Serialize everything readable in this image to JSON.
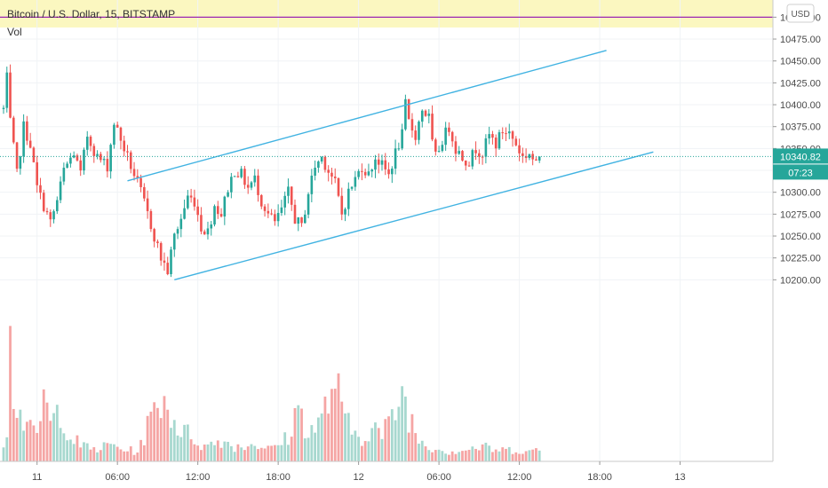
{
  "header": {
    "title": "Bitcoin / U.S. Dollar, 15, BITSTAMP",
    "subtitle": "Vol",
    "currency_button": "USD"
  },
  "colors": {
    "up": "#26a69a",
    "down": "#ef5350",
    "vol_up": "#a7d8cf",
    "vol_down": "#f5a5a4",
    "channel": "#41b3e2",
    "last_price_tag": "#26a69a",
    "countdown_tag": "#26a69a",
    "header_bg": "#fbf7c0",
    "alert_line": "#9c27b0"
  },
  "tags": {
    "last_price": "10340.82",
    "countdown": "07:23"
  },
  "chart_data": {
    "type": "candlestick",
    "title": "Bitcoin / U.S. Dollar, 15, BITSTAMP",
    "y_axis": {
      "ylim": [
        10180,
        10510
      ],
      "ticks": [
        "10200.00",
        "10225.00",
        "10250.00",
        "10275.00",
        "10300.00",
        "10325.00",
        "10350.00",
        "10375.00",
        "10400.00",
        "10425.00",
        "10450.00",
        "10475.00",
        "10500.00"
      ]
    },
    "x_axis": {
      "ticks": [
        {
          "label": "11",
          "bar": 10
        },
        {
          "label": "06:00",
          "bar": 34
        },
        {
          "label": "12:00",
          "bar": 58
        },
        {
          "label": "18:00",
          "bar": 82
        },
        {
          "label": "12",
          "bar": 106
        },
        {
          "label": "06:00",
          "bar": 130
        },
        {
          "label": "12:00",
          "bar": 154
        },
        {
          "label": "18:00",
          "bar": 178
        },
        {
          "label": "13",
          "bar": 202
        }
      ]
    },
    "last_price": 10340.82,
    "alert_level": 10500,
    "keypoints": [
      [
        0,
        10395
      ],
      [
        1,
        10430
      ],
      [
        2,
        10380
      ],
      [
        4,
        10320
      ],
      [
        6,
        10375
      ],
      [
        8,
        10355
      ],
      [
        10,
        10305
      ],
      [
        12,
        10285
      ],
      [
        14,
        10265
      ],
      [
        16,
        10290
      ],
      [
        18,
        10325
      ],
      [
        21,
        10345
      ],
      [
        23,
        10320
      ],
      [
        25,
        10365
      ],
      [
        28,
        10340
      ],
      [
        31,
        10330
      ],
      [
        33,
        10380
      ],
      [
        35,
        10360
      ],
      [
        38,
        10330
      ],
      [
        41,
        10300
      ],
      [
        43,
        10275
      ],
      [
        45,
        10250
      ],
      [
        47,
        10225
      ],
      [
        49,
        10210
      ],
      [
        51,
        10250
      ],
      [
        53,
        10270
      ],
      [
        55,
        10295
      ],
      [
        57,
        10290
      ],
      [
        59,
        10260
      ],
      [
        61,
        10255
      ],
      [
        63,
        10285
      ],
      [
        65,
        10275
      ],
      [
        67,
        10305
      ],
      [
        69,
        10325
      ],
      [
        71,
        10320
      ],
      [
        73,
        10305
      ],
      [
        75,
        10315
      ],
      [
        77,
        10290
      ],
      [
        79,
        10275
      ],
      [
        81,
        10265
      ],
      [
        83,
        10280
      ],
      [
        85,
        10300
      ],
      [
        87,
        10270
      ],
      [
        89,
        10260
      ],
      [
        91,
        10300
      ],
      [
        93,
        10330
      ],
      [
        95,
        10340
      ],
      [
        97,
        10325
      ],
      [
        99,
        10310
      ],
      [
        101,
        10275
      ],
      [
        103,
        10300
      ],
      [
        105,
        10315
      ],
      [
        107,
        10330
      ],
      [
        109,
        10320
      ],
      [
        111,
        10340
      ],
      [
        113,
        10330
      ],
      [
        115,
        10320
      ],
      [
        117,
        10345
      ],
      [
        119,
        10365
      ],
      [
        120,
        10400
      ],
      [
        121,
        10380
      ],
      [
        123,
        10365
      ],
      [
        125,
        10395
      ],
      [
        127,
        10385
      ],
      [
        128,
        10355
      ],
      [
        129,
        10340
      ],
      [
        131,
        10360
      ],
      [
        133,
        10375
      ],
      [
        135,
        10350
      ],
      [
        137,
        10340
      ],
      [
        139,
        10335
      ],
      [
        141,
        10350
      ],
      [
        143,
        10345
      ],
      [
        145,
        10365
      ],
      [
        147,
        10355
      ],
      [
        149,
        10370
      ],
      [
        151,
        10368
      ],
      [
        153,
        10355
      ],
      [
        155,
        10340
      ],
      [
        157,
        10345
      ],
      [
        159,
        10330
      ],
      [
        160,
        10340.82
      ]
    ],
    "volume_keypoints": [
      [
        0,
        18
      ],
      [
        1,
        28
      ],
      [
        2,
        95
      ],
      [
        3,
        60
      ],
      [
        5,
        40
      ],
      [
        8,
        25
      ],
      [
        10,
        20
      ],
      [
        12,
        55
      ],
      [
        14,
        30
      ],
      [
        17,
        45
      ],
      [
        20,
        20
      ],
      [
        24,
        12
      ],
      [
        28,
        10
      ],
      [
        32,
        14
      ],
      [
        36,
        10
      ],
      [
        40,
        8
      ],
      [
        44,
        35
      ],
      [
        47,
        55
      ],
      [
        50,
        40
      ],
      [
        53,
        25
      ],
      [
        56,
        22
      ],
      [
        60,
        12
      ],
      [
        65,
        18
      ],
      [
        70,
        12
      ],
      [
        75,
        15
      ],
      [
        80,
        10
      ],
      [
        85,
        20
      ],
      [
        88,
        45
      ],
      [
        91,
        25
      ],
      [
        94,
        30
      ],
      [
        97,
        50
      ],
      [
        99,
        70
      ],
      [
        101,
        40
      ],
      [
        104,
        25
      ],
      [
        107,
        20
      ],
      [
        110,
        30
      ],
      [
        113,
        22
      ],
      [
        116,
        35
      ],
      [
        119,
        58
      ],
      [
        121,
        40
      ],
      [
        124,
        18
      ],
      [
        128,
        12
      ],
      [
        133,
        8
      ],
      [
        138,
        10
      ],
      [
        143,
        12
      ],
      [
        148,
        9
      ],
      [
        153,
        10
      ],
      [
        158,
        8
      ],
      [
        160,
        10
      ]
    ],
    "channel_lines": [
      {
        "from": {
          "bar": 37,
          "price": 10313
        },
        "to": {
          "bar": 180,
          "price": 10462
        }
      },
      {
        "from": {
          "bar": 51,
          "price": 10200
        },
        "to": {
          "bar": 194,
          "price": 10346
        }
      }
    ]
  }
}
